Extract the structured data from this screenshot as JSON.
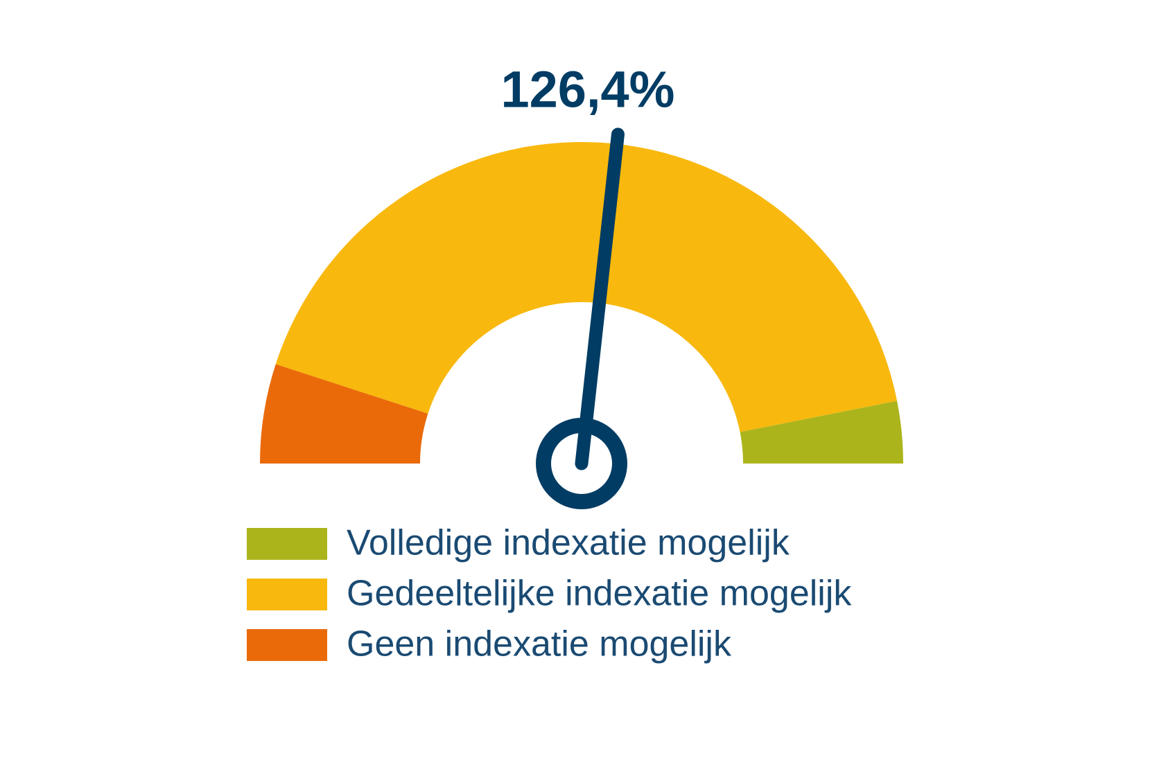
{
  "chart_data": {
    "type": "gauge",
    "value": 126.4,
    "value_label": "126,4%",
    "range": [
      105,
      145
    ],
    "needle_color": "#003c64",
    "series": [
      {
        "name": "Volledige indexatie mogelijk",
        "color": "#abb51b",
        "range": [
          142.5,
          145
        ]
      },
      {
        "name": "Gedeeltelijke indexatie mogelijk",
        "color": "#f8b80e",
        "range": [
          109,
          142.5
        ]
      },
      {
        "name": "Geen indexatie mogelijk",
        "color": "#ea6a0a",
        "range": [
          105,
          109
        ]
      }
    ]
  }
}
